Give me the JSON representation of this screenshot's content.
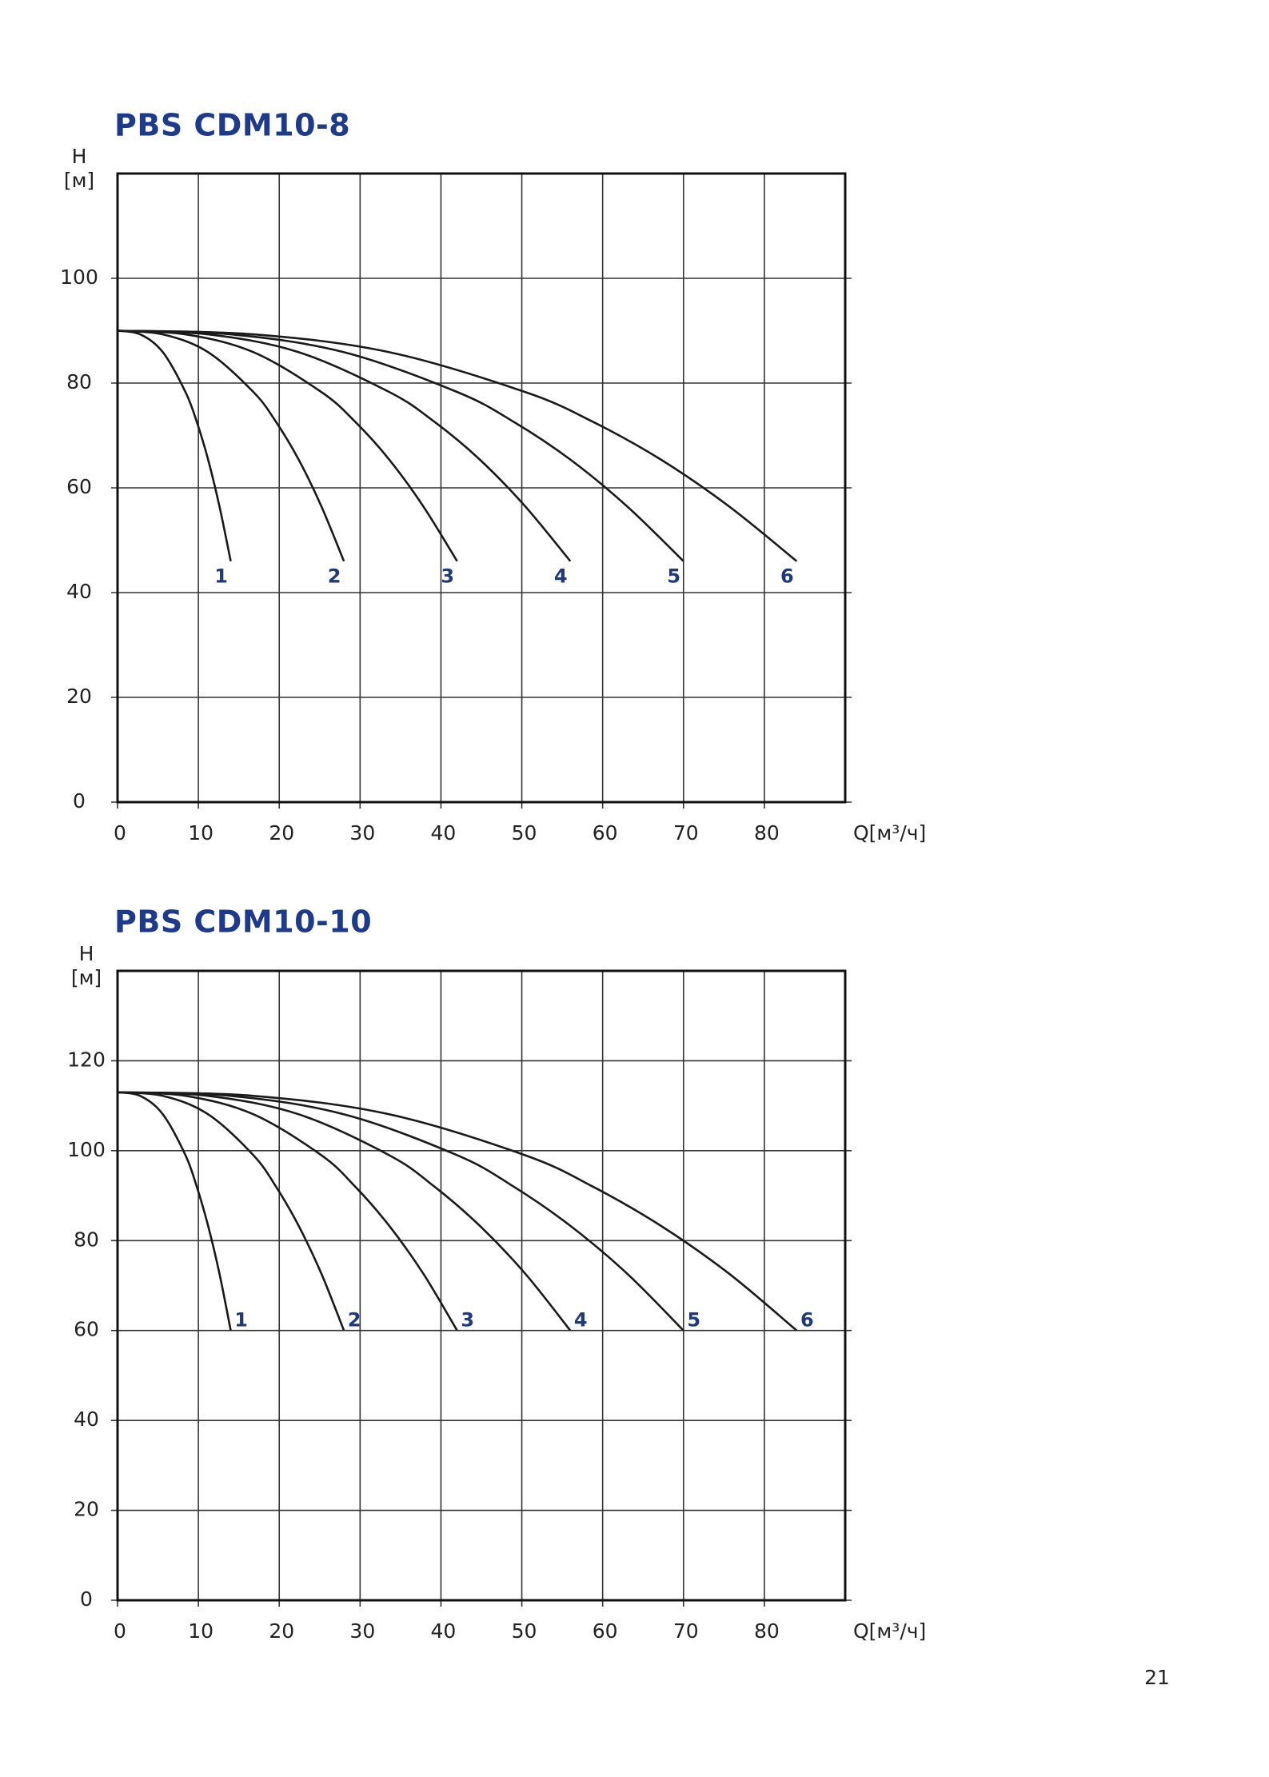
{
  "chart_data": [
    {
      "type": "line",
      "title": "PBS CDM10-8",
      "y_label": [
        "H",
        "[м]"
      ],
      "x_label": "Q[м³/ч]",
      "xlim": [
        0,
        90
      ],
      "xticks": [
        0,
        10,
        20,
        30,
        40,
        50,
        60,
        70,
        80
      ],
      "ylim": [
        0,
        120
      ],
      "yticks": [
        0,
        20,
        40,
        60,
        80,
        100
      ],
      "grid": true,
      "color": "#1a1a1a",
      "label_color": "#1f3a7a",
      "series": [
        {
          "name": "1",
          "x": [
            0,
            2.8,
            5.6,
            8.4,
            9.8,
            11.2,
            12.6,
            14
          ],
          "values": [
            90,
            89.3,
            85.9,
            78.3,
            72.6,
            65.4,
            56.5,
            46
          ]
        },
        {
          "name": "2",
          "x": [
            0,
            5.6,
            11.2,
            16.8,
            19.6,
            22.4,
            25.2,
            28
          ],
          "values": [
            90,
            89.3,
            85.9,
            78.3,
            72.6,
            65.4,
            56.5,
            46
          ]
        },
        {
          "name": "3",
          "x": [
            0,
            8.4,
            16.8,
            25.2,
            29.4,
            33.6,
            37.8,
            42
          ],
          "values": [
            90,
            89.3,
            85.9,
            78.3,
            72.6,
            65.4,
            56.5,
            46
          ]
        },
        {
          "name": "4",
          "x": [
            0,
            11.2,
            22.4,
            33.6,
            39.2,
            44.8,
            50.4,
            56
          ],
          "values": [
            90,
            89.3,
            85.9,
            78.3,
            72.6,
            65.4,
            56.5,
            46
          ]
        },
        {
          "name": "5",
          "x": [
            0,
            14,
            28,
            42,
            49,
            56,
            63,
            70
          ],
          "values": [
            90,
            89.3,
            85.9,
            78.3,
            72.6,
            65.4,
            56.5,
            46
          ]
        },
        {
          "name": "6",
          "x": [
            0,
            16.8,
            33.6,
            50.4,
            58.8,
            67.2,
            75.6,
            84
          ],
          "values": [
            90,
            89.3,
            85.9,
            78.3,
            72.6,
            65.4,
            56.5,
            46
          ]
        }
      ]
    },
    {
      "type": "line",
      "title": "PBS CDM10-10",
      "y_label": [
        "H",
        "[м]"
      ],
      "x_label": "Q[м³/ч]",
      "xlim": [
        0,
        90
      ],
      "xticks": [
        0,
        10,
        20,
        30,
        40,
        50,
        60,
        70,
        80
      ],
      "ylim": [
        0,
        140
      ],
      "yticks": [
        0,
        20,
        40,
        60,
        80,
        100,
        120
      ],
      "grid": true,
      "color": "#1a1a1a",
      "label_color": "#1f3a7a",
      "series": [
        {
          "name": "1",
          "x": [
            0,
            2.8,
            5.6,
            8.4,
            9.8,
            11.2,
            12.6,
            14
          ],
          "values": [
            113,
            112.2,
            108.1,
            99,
            92,
            83.3,
            72.7,
            60
          ]
        },
        {
          "name": "2",
          "x": [
            0,
            5.6,
            11.2,
            16.8,
            19.6,
            22.4,
            25.2,
            28
          ],
          "values": [
            113,
            112.2,
            108.1,
            99,
            92,
            83.3,
            72.7,
            60
          ]
        },
        {
          "name": "3",
          "x": [
            0,
            8.4,
            16.8,
            25.2,
            29.4,
            33.6,
            37.8,
            42
          ],
          "values": [
            113,
            112.2,
            108.1,
            99,
            92,
            83.3,
            72.7,
            60
          ]
        },
        {
          "name": "4",
          "x": [
            0,
            11.2,
            22.4,
            33.6,
            39.2,
            44.8,
            50.4,
            56
          ],
          "values": [
            113,
            112.2,
            108.1,
            99,
            92,
            83.3,
            72.7,
            60
          ]
        },
        {
          "name": "5",
          "x": [
            0,
            14,
            28,
            42,
            49,
            56,
            63,
            70
          ],
          "values": [
            113,
            112.2,
            108.1,
            99,
            92,
            83.3,
            72.7,
            60
          ]
        },
        {
          "name": "6",
          "x": [
            0,
            16.8,
            33.6,
            50.4,
            58.8,
            67.2,
            75.6,
            84
          ],
          "values": [
            113,
            112.2,
            108.1,
            99,
            92,
            83.3,
            72.7,
            60
          ]
        }
      ]
    }
  ],
  "page_number": "21"
}
